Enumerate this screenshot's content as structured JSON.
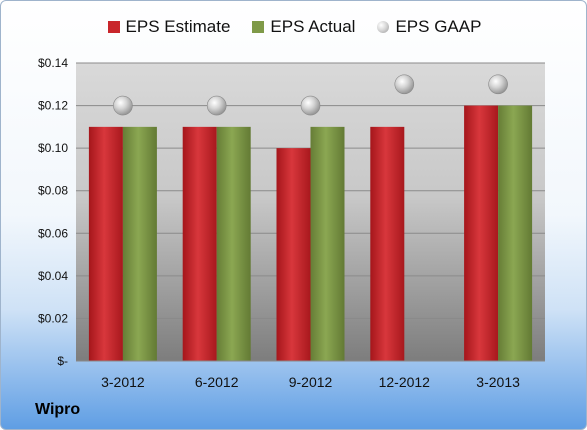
{
  "company": "Wipro",
  "colors": {
    "estimate": "#c9262b",
    "actual": "#7f9a48",
    "gaap": "#bcbcbc"
  },
  "chart_data": {
    "type": "bar",
    "categories": [
      "3-2012",
      "6-2012",
      "9-2012",
      "12-2012",
      "3-2013"
    ],
    "series": [
      {
        "name": "EPS Estimate",
        "style": "bar",
        "values": [
          0.11,
          0.11,
          0.1,
          0.11,
          0.12
        ]
      },
      {
        "name": "EPS Actual",
        "style": "bar",
        "values": [
          0.11,
          0.11,
          0.11,
          null,
          0.12
        ]
      },
      {
        "name": "EPS GAAP",
        "style": "marker",
        "values": [
          0.12,
          0.12,
          0.12,
          0.13,
          0.13
        ]
      }
    ],
    "yticks": [
      "$-",
      "$0.02",
      "$0.04",
      "$0.06",
      "$0.08",
      "$0.10",
      "$0.12",
      "$0.14"
    ],
    "ylim": [
      0,
      0.14
    ],
    "grid": true,
    "legend_position": "top"
  }
}
